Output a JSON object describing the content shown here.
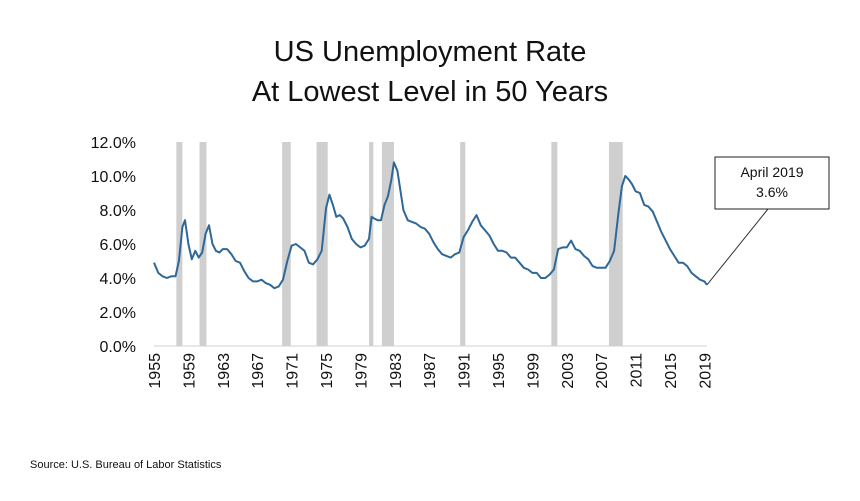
{
  "chart_data": {
    "type": "line",
    "title": [
      "US Unemployment Rate",
      "At Lowest Level in 50 Years"
    ],
    "xlabel": "",
    "ylabel": "",
    "xlim": [
      1955,
      2019.3
    ],
    "ylim": [
      0,
      12
    ],
    "yticks": [
      0,
      2,
      4,
      6,
      8,
      10,
      12
    ],
    "ytick_labels": [
      "0.0%",
      "2.0%",
      "4.0%",
      "6.0%",
      "8.0%",
      "10.0%",
      "12.0%"
    ],
    "xticks": [
      1955,
      1959,
      1963,
      1967,
      1971,
      1975,
      1979,
      1983,
      1987,
      1991,
      1995,
      1999,
      2003,
      2007,
      2011,
      2015,
      2019
    ],
    "xtick_labels": [
      "1955",
      "1959",
      "1963",
      "1967",
      "1971",
      "1975",
      "1979",
      "1983",
      "1987",
      "1991",
      "1995",
      "1999",
      "2003",
      "2007",
      "2011",
      "2015",
      "2019"
    ],
    "recessions": [
      [
        1957.6,
        1958.3
      ],
      [
        1960.3,
        1961.1
      ],
      [
        1969.9,
        1970.9
      ],
      [
        1973.9,
        1975.2
      ],
      [
        1980.0,
        1980.5
      ],
      [
        1981.5,
        1982.9
      ],
      [
        1990.6,
        1991.2
      ],
      [
        2001.2,
        2001.9
      ],
      [
        2007.9,
        2009.5
      ]
    ],
    "series": [
      {
        "name": "Unemployment Rate",
        "color": "#2f6797",
        "x": [
          1955.0,
          1955.5,
          1956.0,
          1956.5,
          1957.0,
          1957.5,
          1957.9,
          1958.3,
          1958.6,
          1959.0,
          1959.4,
          1959.8,
          1960.2,
          1960.6,
          1961.0,
          1961.4,
          1961.8,
          1962.2,
          1962.6,
          1963.0,
          1963.5,
          1964.0,
          1964.5,
          1965.0,
          1965.5,
          1966.0,
          1966.5,
          1967.0,
          1967.5,
          1968.0,
          1968.5,
          1969.0,
          1969.5,
          1970.0,
          1970.5,
          1971.0,
          1971.5,
          1972.0,
          1972.5,
          1973.0,
          1973.5,
          1974.0,
          1974.5,
          1975.0,
          1975.4,
          1975.8,
          1976.2,
          1976.6,
          1977.0,
          1977.5,
          1978.0,
          1978.5,
          1979.0,
          1979.5,
          1980.0,
          1980.3,
          1980.6,
          1981.0,
          1981.4,
          1981.8,
          1982.2,
          1982.6,
          1982.9,
          1983.3,
          1983.7,
          1984.0,
          1984.5,
          1985.0,
          1985.5,
          1986.0,
          1986.5,
          1987.0,
          1987.5,
          1988.0,
          1988.5,
          1989.0,
          1989.5,
          1990.0,
          1990.5,
          1991.0,
          1991.5,
          1992.0,
          1992.5,
          1993.0,
          1993.5,
          1994.0,
          1994.5,
          1995.0,
          1995.5,
          1996.0,
          1996.5,
          1997.0,
          1997.5,
          1998.0,
          1998.5,
          1999.0,
          1999.5,
          2000.0,
          2000.5,
          2001.0,
          2001.5,
          2002.0,
          2002.5,
          2003.0,
          2003.5,
          2004.0,
          2004.5,
          2005.0,
          2005.5,
          2006.0,
          2006.5,
          2007.0,
          2007.5,
          2008.0,
          2008.5,
          2009.0,
          2009.4,
          2009.8,
          2010.2,
          2010.6,
          2011.0,
          2011.5,
          2012.0,
          2012.5,
          2013.0,
          2013.5,
          2014.0,
          2014.5,
          2015.0,
          2015.5,
          2016.0,
          2016.5,
          2017.0,
          2017.5,
          2018.0,
          2018.5,
          2019.0,
          2019.3
        ],
        "values": [
          4.9,
          4.3,
          4.1,
          4.0,
          4.1,
          4.1,
          5.0,
          7.0,
          7.4,
          6.0,
          5.1,
          5.6,
          5.2,
          5.5,
          6.6,
          7.1,
          6.0,
          5.6,
          5.5,
          5.7,
          5.7,
          5.4,
          5.0,
          4.9,
          4.4,
          4.0,
          3.8,
          3.8,
          3.9,
          3.7,
          3.6,
          3.4,
          3.5,
          3.9,
          5.0,
          5.9,
          6.0,
          5.8,
          5.6,
          4.9,
          4.8,
          5.1,
          5.6,
          8.1,
          8.9,
          8.3,
          7.6,
          7.7,
          7.5,
          7.0,
          6.3,
          6.0,
          5.8,
          5.9,
          6.3,
          7.6,
          7.5,
          7.4,
          7.4,
          8.3,
          8.8,
          9.8,
          10.8,
          10.3,
          9.0,
          8.0,
          7.4,
          7.3,
          7.2,
          7.0,
          6.9,
          6.6,
          6.1,
          5.7,
          5.4,
          5.3,
          5.2,
          5.4,
          5.5,
          6.4,
          6.8,
          7.3,
          7.7,
          7.1,
          6.8,
          6.5,
          6.0,
          5.6,
          5.6,
          5.5,
          5.2,
          5.2,
          4.9,
          4.6,
          4.5,
          4.3,
          4.3,
          4.0,
          4.0,
          4.2,
          4.5,
          5.7,
          5.8,
          5.8,
          6.2,
          5.7,
          5.6,
          5.3,
          5.1,
          4.7,
          4.6,
          4.6,
          4.6,
          5.0,
          5.6,
          7.8,
          9.4,
          10.0,
          9.8,
          9.5,
          9.1,
          9.0,
          8.3,
          8.2,
          7.9,
          7.3,
          6.7,
          6.2,
          5.7,
          5.3,
          4.9,
          4.9,
          4.7,
          4.3,
          4.1,
          3.9,
          3.8,
          3.6
        ]
      }
    ],
    "annotation": {
      "label_line1": "April 2019",
      "label_line2": "3.6%",
      "x": 2019.3,
      "y": 3.6
    },
    "source": "Source: U.S. Bureau of Labor Statistics",
    "colors": {
      "line": "#2f6797",
      "recession": "#cfcfcf",
      "axis": "#d0d0d0",
      "callout_border": "#222222"
    }
  }
}
